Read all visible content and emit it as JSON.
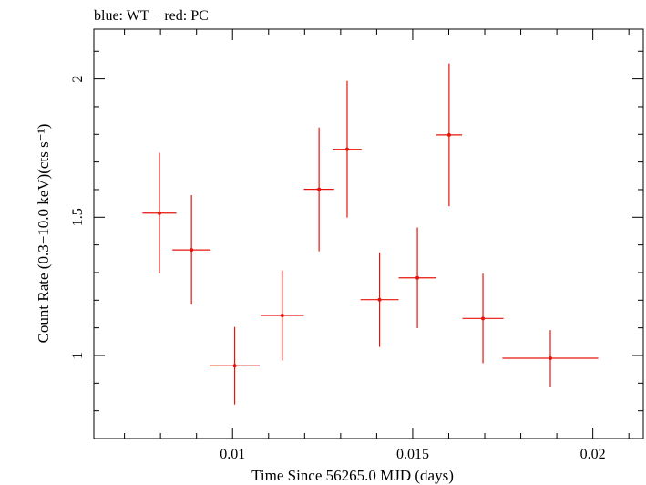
{
  "chart_data": {
    "type": "scatter",
    "title": "blue: WT − red: PC",
    "xlabel": "Time Since 56265.0 MJD (days)",
    "ylabel": "Count Rate (0.3−10.0 keV)(cts s⁻¹)",
    "xlim": [
      0.00615,
      0.0214
    ],
    "ylim": [
      0.7,
      2.18
    ],
    "x_ticks": [
      0.01,
      0.015,
      0.02
    ],
    "x_tick_labels": [
      "0.01",
      "0.015",
      "0.02"
    ],
    "y_ticks": [
      1,
      1.5,
      2
    ],
    "y_tick_labels": [
      "1",
      "1.5",
      "2"
    ],
    "grid": false,
    "series": [
      {
        "color": "#e8140c",
        "points": [
          {
            "x": 0.00797,
            "y": 1.515,
            "xerr": 0.00047,
            "yerr": 0.218
          },
          {
            "x": 0.00886,
            "y": 1.382,
            "xerr": 0.00053,
            "yerr": 0.198
          },
          {
            "x": 0.01006,
            "y": 0.963,
            "xerr": 0.00069,
            "yerr": 0.14
          },
          {
            "x": 0.01138,
            "y": 1.145,
            "xerr": 0.0006,
            "yerr": 0.163
          },
          {
            "x": 0.0124,
            "y": 1.601,
            "xerr": 0.00042,
            "yerr": 0.224
          },
          {
            "x": 0.01318,
            "y": 1.746,
            "xerr": 0.0004,
            "yerr": 0.247
          },
          {
            "x": 0.01408,
            "y": 1.202,
            "xerr": 0.00053,
            "yerr": 0.171
          },
          {
            "x": 0.01513,
            "y": 1.281,
            "xerr": 0.00052,
            "yerr": 0.182
          },
          {
            "x": 0.01601,
            "y": 1.798,
            "xerr": 0.00036,
            "yerr": 0.258
          },
          {
            "x": 0.01695,
            "y": 1.134,
            "xerr": 0.00057,
            "yerr": 0.162
          },
          {
            "x": 0.01882,
            "y": 0.99,
            "xerr": 0.00133,
            "yerr": 0.102
          }
        ]
      }
    ]
  }
}
